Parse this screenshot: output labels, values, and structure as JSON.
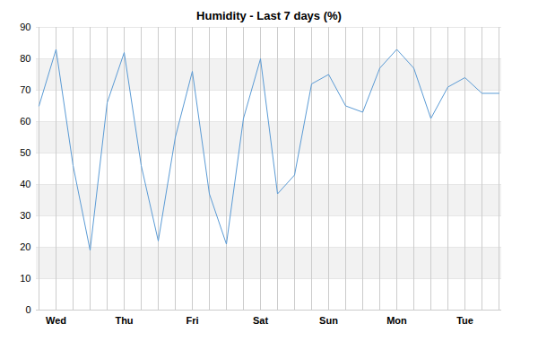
{
  "chart_data": {
    "type": "line",
    "title": "Humidity - Last 7 days (%)",
    "categories": [
      null,
      "Wed",
      null,
      null,
      null,
      "Thu",
      null,
      null,
      null,
      "Fri",
      null,
      null,
      null,
      "Sat",
      null,
      null,
      null,
      "Sun",
      null,
      null,
      null,
      "Mon",
      null,
      null,
      null,
      "Tue",
      null,
      null
    ],
    "values": [
      65,
      83,
      46,
      19,
      66,
      82,
      46,
      22,
      55,
      76,
      37,
      21,
      61,
      80,
      37,
      43,
      72,
      75,
      65,
      63,
      77,
      83,
      77,
      61,
      71,
      74,
      69,
      69
    ],
    "color": "#5b9bd5",
    "ylim": [
      0,
      90
    ],
    "yticks": [
      0,
      10,
      20,
      30,
      40,
      50,
      60,
      70,
      80,
      90
    ],
    "grid": true
  }
}
